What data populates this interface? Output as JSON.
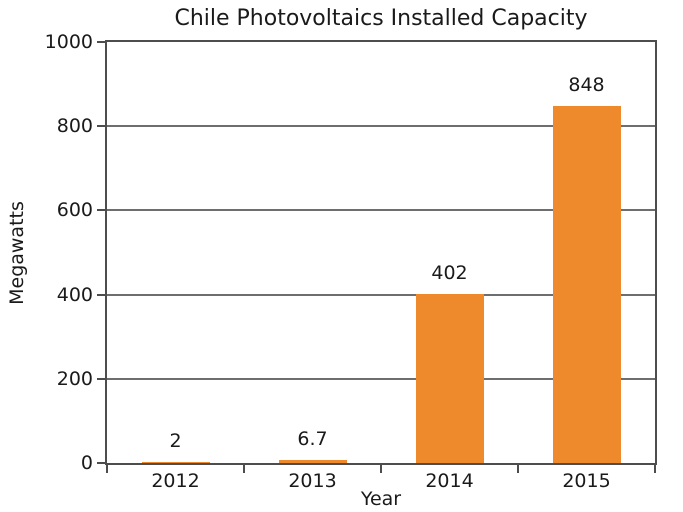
{
  "chart_data": {
    "type": "bar",
    "title": "Chile Photovoltaics Installed Capacity",
    "xlabel": "Year",
    "ylabel": "Megawatts",
    "categories": [
      "2012",
      "2013",
      "2014",
      "2015"
    ],
    "values": [
      2,
      6.7,
      402,
      848
    ],
    "value_labels": [
      "2",
      "6.7",
      "402",
      "848"
    ],
    "ylim": [
      0,
      1000
    ],
    "yticks": [
      0,
      200,
      400,
      600,
      800,
      1000
    ],
    "ytick_labels": [
      "0",
      "200",
      "400",
      "600",
      "800",
      "1000"
    ],
    "grid": "horizontal",
    "legend": "none",
    "bar_color": "#EF8A2C",
    "grid_color": "#6E6E6E",
    "axis_color": "#4D4D4D",
    "text_color": "#1A1A1A",
    "background_color": "#FFFFFF"
  }
}
